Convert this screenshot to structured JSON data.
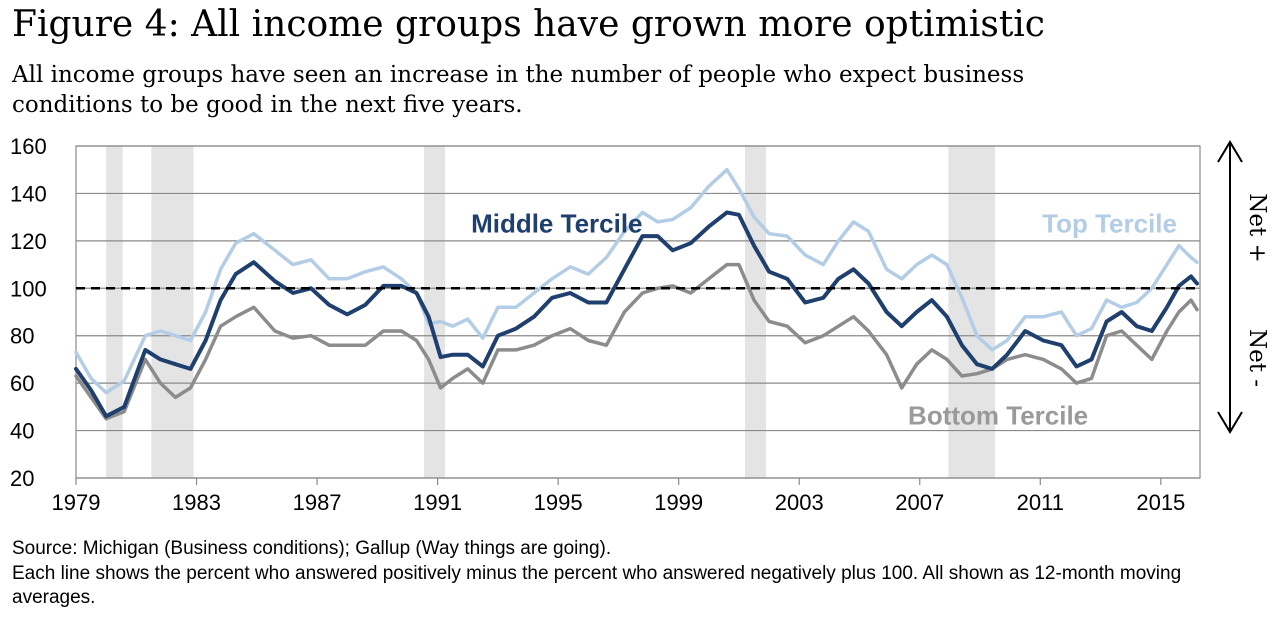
{
  "header": {
    "title": "Figure 4: All income groups have grown more optimistic",
    "subtitle": "All income groups have seen an increase in the number of people who expect business conditions to be good in the next five years."
  },
  "footer": {
    "source": "Source: Michigan (Business conditions); Gallup (Way things are going).",
    "note": "Each line shows the percent who answered positively minus the percent who answered negatively plus 100. All shown as 12-month moving averages."
  },
  "chart_data": {
    "type": "line",
    "title": "",
    "xlabel": "",
    "ylabel": "",
    "xlim": [
      1979,
      2016.3
    ],
    "ylim": [
      20,
      160
    ],
    "x_ticks": [
      1979,
      1983,
      1987,
      1991,
      1995,
      1999,
      2003,
      2007,
      2011,
      2015
    ],
    "y_ticks": [
      20,
      40,
      60,
      80,
      100,
      120,
      140,
      160
    ],
    "grid": true,
    "reference_line": {
      "y": 100,
      "style": "dashed",
      "color": "#000000"
    },
    "right_annotations": {
      "upper": "Net +",
      "lower": "Net -"
    },
    "recessions": [
      [
        1980.0,
        1980.55
      ],
      [
        1981.5,
        1982.9
      ],
      [
        1990.55,
        1991.25
      ],
      [
        2001.2,
        2001.9
      ],
      [
        2007.95,
        2009.5
      ]
    ],
    "series": [
      {
        "name": "Top Tercile",
        "color": "#b4cde6",
        "x": [
          1979,
          1979.5,
          1980,
          1980.6,
          1981.3,
          1981.8,
          1982.3,
          1982.8,
          1983.3,
          1983.8,
          1984.3,
          1984.9,
          1985.6,
          1986.2,
          1986.8,
          1987.4,
          1988,
          1988.6,
          1989.2,
          1989.8,
          1990.3,
          1990.7,
          1991.1,
          1991.5,
          1992,
          1992.5,
          1993,
          1993.6,
          1994.2,
          1994.8,
          1995.4,
          1996,
          1996.6,
          1997.2,
          1997.8,
          1998.3,
          1998.8,
          1999.4,
          2000,
          2000.6,
          2001,
          2001.5,
          2002,
          2002.6,
          2003.2,
          2003.8,
          2004.3,
          2004.8,
          2005.3,
          2005.9,
          2006.4,
          2006.9,
          2007.4,
          2007.9,
          2008.4,
          2008.9,
          2009.4,
          2009.9,
          2010.5,
          2011.1,
          2011.7,
          2012.2,
          2012.7,
          2013.2,
          2013.7,
          2014.2,
          2014.7,
          2015.2,
          2015.6,
          2016,
          2016.2
        ],
        "values": [
          73,
          62,
          56,
          61,
          80,
          82,
          80,
          78,
          90,
          108,
          119,
          123,
          116,
          110,
          112,
          104,
          104,
          107,
          109,
          104,
          98,
          85,
          86,
          84,
          87,
          79,
          92,
          92,
          98,
          104,
          109,
          106,
          113,
          124,
          132,
          128,
          129,
          134,
          143,
          150,
          142,
          130,
          123,
          122,
          114,
          110,
          120,
          128,
          124,
          108,
          104,
          110,
          114,
          110,
          96,
          80,
          74,
          78,
          88,
          88,
          90,
          80,
          83,
          95,
          92,
          94,
          100,
          110,
          118,
          113,
          111
        ]
      },
      {
        "name": "Middle Tercile",
        "color": "#1f3f6e",
        "x": [
          1979,
          1979.5,
          1980,
          1980.6,
          1981.3,
          1981.8,
          1982.3,
          1982.8,
          1983.3,
          1983.8,
          1984.3,
          1984.9,
          1985.6,
          1986.2,
          1986.8,
          1987.4,
          1988,
          1988.6,
          1989.2,
          1989.8,
          1990.3,
          1990.7,
          1991.1,
          1991.5,
          1992,
          1992.5,
          1993,
          1993.6,
          1994.2,
          1994.8,
          1995.4,
          1996,
          1996.6,
          1997.2,
          1997.8,
          1998.3,
          1998.8,
          1999.4,
          2000,
          2000.6,
          2001,
          2001.5,
          2002,
          2002.6,
          2003.2,
          2003.8,
          2004.3,
          2004.8,
          2005.3,
          2005.9,
          2006.4,
          2006.9,
          2007.4,
          2007.9,
          2008.4,
          2008.9,
          2009.4,
          2009.9,
          2010.5,
          2011.1,
          2011.7,
          2012.2,
          2012.7,
          2013.2,
          2013.7,
          2014.2,
          2014.7,
          2015.2,
          2015.6,
          2016,
          2016.2
        ],
        "values": [
          66,
          57,
          46,
          50,
          74,
          70,
          68,
          66,
          78,
          95,
          106,
          111,
          103,
          98,
          100,
          93,
          89,
          93,
          101,
          101,
          98,
          88,
          71,
          72,
          72,
          67,
          80,
          83,
          88,
          96,
          98,
          94,
          94,
          108,
          122,
          122,
          116,
          119,
          126,
          132,
          131,
          118,
          107,
          104,
          94,
          96,
          104,
          108,
          102,
          90,
          84,
          90,
          95,
          88,
          76,
          68,
          66,
          72,
          82,
          78,
          76,
          67,
          70,
          86,
          90,
          84,
          82,
          92,
          101,
          105,
          102
        ]
      },
      {
        "name": "Bottom Tercile",
        "color": "#8c8c8c",
        "x": [
          1979,
          1979.5,
          1980,
          1980.6,
          1981.3,
          1981.8,
          1982.3,
          1982.8,
          1983.3,
          1983.8,
          1984.3,
          1984.9,
          1985.6,
          1986.2,
          1986.8,
          1987.4,
          1988,
          1988.6,
          1989.2,
          1989.8,
          1990.3,
          1990.7,
          1991.1,
          1991.5,
          1992,
          1992.5,
          1993,
          1993.6,
          1994.2,
          1994.8,
          1995.4,
          1996,
          1996.6,
          1997.2,
          1997.8,
          1998.3,
          1998.8,
          1999.4,
          2000,
          2000.6,
          2001,
          2001.5,
          2002,
          2002.6,
          2003.2,
          2003.8,
          2004.3,
          2004.8,
          2005.3,
          2005.9,
          2006.4,
          2006.9,
          2007.4,
          2007.9,
          2008.4,
          2008.9,
          2009.4,
          2009.9,
          2010.5,
          2011.1,
          2011.7,
          2012.2,
          2012.7,
          2013.2,
          2013.7,
          2014.2,
          2014.7,
          2015.2,
          2015.6,
          2016,
          2016.2
        ],
        "values": [
          63,
          54,
          45,
          48,
          70,
          60,
          54,
          58,
          70,
          84,
          88,
          92,
          82,
          79,
          80,
          76,
          76,
          76,
          82,
          82,
          78,
          70,
          58,
          62,
          66,
          60,
          74,
          74,
          76,
          80,
          83,
          78,
          76,
          90,
          98,
          100,
          101,
          98,
          104,
          110,
          110,
          95,
          86,
          84,
          77,
          80,
          84,
          88,
          82,
          72,
          58,
          68,
          74,
          70,
          63,
          64,
          66,
          70,
          72,
          70,
          66,
          60,
          62,
          80,
          82,
          76,
          70,
          82,
          90,
          95,
          91
        ]
      }
    ],
    "series_labels": [
      {
        "name": "Middle Tercile",
        "x": 1997.8,
        "y": 127,
        "color": "#1f3f6e",
        "weight": "bold"
      },
      {
        "name": "Top Tercile",
        "x": 2016.4,
        "y": 127,
        "color": "#b4cde6",
        "weight": "bold"
      },
      {
        "name": "Bottom Tercile",
        "x": 2009.6,
        "y": 46,
        "color": "#9a9a9a",
        "weight": "bold"
      }
    ]
  }
}
